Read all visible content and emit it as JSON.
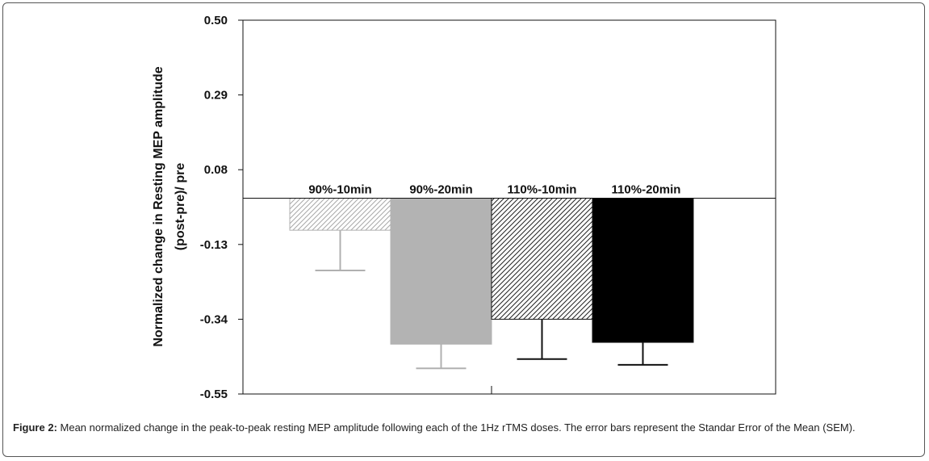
{
  "chart_data": {
    "type": "bar",
    "categories": [
      "90%-10min",
      "90%-20min",
      "110%-10min",
      "110%-20min"
    ],
    "values": [
      -0.09,
      -0.41,
      -0.34,
      -0.405
    ],
    "errors": [
      0.113,
      0.068,
      0.112,
      0.063
    ],
    "ylabel_line1": "Normalized change in Resting MEP amplitude",
    "ylabel_line2": "(post-pre)/ pre",
    "ylim": [
      -0.55,
      0.5
    ],
    "yticks": [
      0.5,
      0.29,
      0.08,
      -0.13,
      -0.34,
      -0.55
    ],
    "ytick_labels": [
      "0.50",
      "0.29",
      "0.08",
      "-0.13",
      "-0.34",
      "-0.55"
    ],
    "grid": false,
    "bar_styles": [
      {
        "fill": "hatch-light",
        "error_color": "#b0b0b0"
      },
      {
        "fill": "#b3b3b3",
        "error_color": "#b0b0b0"
      },
      {
        "fill": "hatch-dark",
        "error_color": "#111111"
      },
      {
        "fill": "#000000",
        "error_color": "#111111"
      }
    ]
  },
  "caption": {
    "label": "Figure 2:",
    "text": " Mean normalized change in the peak-to-peak resting MEP amplitude following each of the 1Hz rTMS doses. The error bars represent the Standar Error of the Mean (SEM)."
  }
}
